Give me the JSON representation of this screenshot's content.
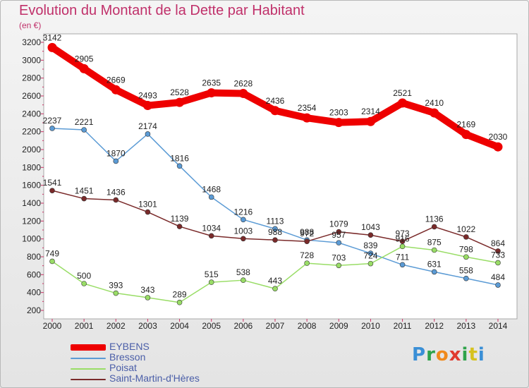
{
  "header": {
    "title": "Evolution du Montant de la Dette par Habitant",
    "unit": "(en €)"
  },
  "logo": {
    "text": "Proxiti",
    "letter_colors": [
      "#3a8fd6",
      "#2ea34a",
      "#f08a1c",
      "#e03a2e",
      "#2ea34a",
      "#d6c21e",
      "#3a8fd6"
    ]
  },
  "chart_data": {
    "type": "line",
    "title": "Evolution du Montant de la Dette par Habitant",
    "ylabel": "(en €)",
    "xlabel": "",
    "x": [
      "2000",
      "2001",
      "2002",
      "2003",
      "2004",
      "2005",
      "2006",
      "2007",
      "2008",
      "2009",
      "2010",
      "2011",
      "2012",
      "2013",
      "2014"
    ],
    "yticks": [
      200,
      400,
      600,
      800,
      1000,
      1200,
      1400,
      1600,
      1800,
      2000,
      2200,
      2400,
      2600,
      2800,
      3000,
      3200
    ],
    "ylim": [
      200,
      3200
    ],
    "grid": false,
    "legend": "bottom-left",
    "series": [
      {
        "name": "EYBENS",
        "color": "#ee0000",
        "values": [
          3142,
          2905,
          2669,
          2493,
          2528,
          2635,
          2628,
          2436,
          2354,
          2303,
          2314,
          2521,
          2410,
          2169,
          2030
        ]
      },
      {
        "name": "Bresson",
        "color": "#5b9bd5",
        "values": [
          2237,
          2221,
          1870,
          2174,
          1816,
          1468,
          1216,
          1113,
          988,
          957,
          839,
          711,
          631,
          558,
          484
        ]
      },
      {
        "name": "Poisat",
        "color": "#99dd66",
        "values": [
          749,
          500,
          393,
          343,
          289,
          515,
          538,
          443,
          728,
          703,
          724,
          916,
          875,
          798,
          733
        ]
      },
      {
        "name": "Saint-Martin-d'Hères",
        "color": "#7a2a2a",
        "values": [
          1541,
          1451,
          1436,
          1301,
          1139,
          1034,
          1003,
          988,
          972,
          1079,
          1043,
          973,
          1136,
          1022,
          864
        ]
      }
    ]
  }
}
